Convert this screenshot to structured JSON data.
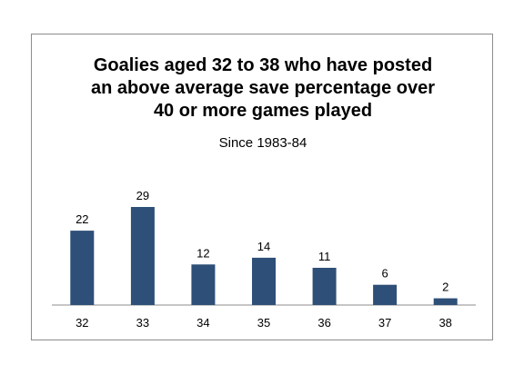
{
  "chart_data": {
    "type": "bar",
    "title_lines": [
      "Goalies aged 32 to 38 who have posted",
      "an above average save percentage over",
      "40 or more games played"
    ],
    "subtitle": "Since 1983-84",
    "categories": [
      "32",
      "33",
      "34",
      "35",
      "36",
      "37",
      "38"
    ],
    "values": [
      22,
      29,
      12,
      14,
      11,
      6,
      2
    ],
    "ylim": [
      0,
      29
    ],
    "grid": false,
    "legend": "none",
    "colors": {
      "bar": "#2e4f77",
      "axis": "#8c8c8c"
    }
  }
}
